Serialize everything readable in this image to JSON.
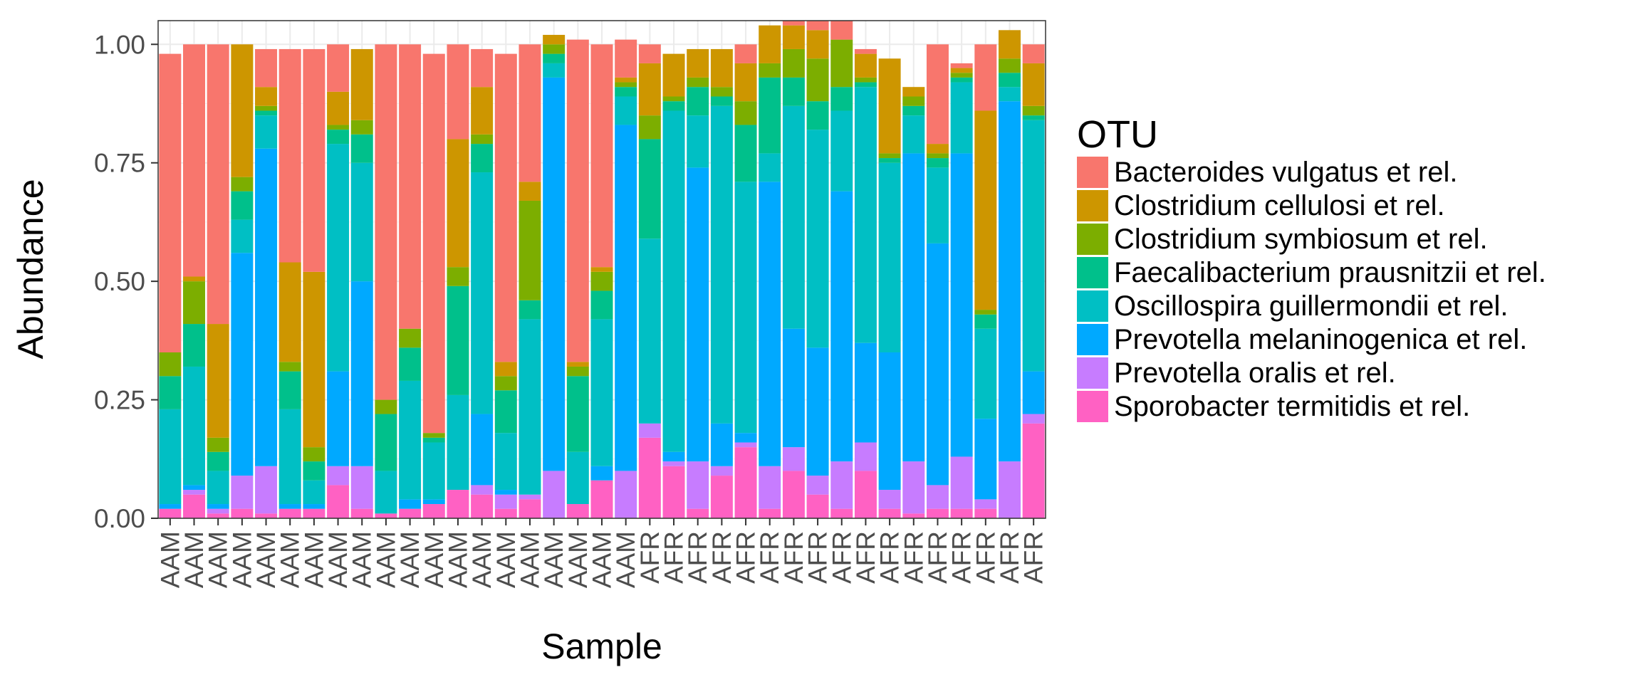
{
  "chart_data": {
    "type": "bar",
    "stacked": true,
    "title": "",
    "xlabel": "Sample",
    "ylabel": "Abundance",
    "ylim": [
      0,
      1.05
    ],
    "yticks": [
      "0.00",
      "0.25",
      "0.50",
      "0.75",
      "1.00"
    ],
    "ytick_values": [
      0,
      0.25,
      0.5,
      0.75,
      1.0
    ],
    "grid": true,
    "legend": {
      "title": "OTU",
      "position": "right"
    },
    "categories": [
      "AAM",
      "AAM",
      "AAM",
      "AAM",
      "AAM",
      "AAM",
      "AAM",
      "AAM",
      "AAM",
      "AAM",
      "AAM",
      "AAM",
      "AAM",
      "AAM",
      "AAM",
      "AAM",
      "AAM",
      "AAM",
      "AAM",
      "AAM",
      "AFR",
      "AFR",
      "AFR",
      "AFR",
      "AFR",
      "AFR",
      "AFR",
      "AFR",
      "AFR",
      "AFR",
      "AFR",
      "AFR",
      "AFR",
      "AFR",
      "AFR",
      "AFR",
      "AFR"
    ],
    "series": [
      {
        "name": "Sporobacter termitidis et rel.",
        "color": "#FF61C3",
        "values": [
          0.02,
          0.05,
          0.01,
          0.02,
          0.01,
          0.02,
          0.02,
          0.07,
          0.02,
          0.01,
          0.02,
          0.03,
          0.06,
          0.05,
          0.02,
          0.04,
          0.0,
          0.03,
          0.08,
          0.0,
          0.17,
          0.11,
          0.02,
          0.09,
          0.15,
          0.02,
          0.1,
          0.05,
          0.02,
          0.1,
          0.02,
          0.01,
          0.02,
          0.02,
          0.02,
          0.0,
          0.2
        ]
      },
      {
        "name": "Prevotella oralis et rel.",
        "color": "#C77CFF",
        "values": [
          0.0,
          0.01,
          0.01,
          0.07,
          0.1,
          0.0,
          0.0,
          0.04,
          0.09,
          0.0,
          0.0,
          0.0,
          0.0,
          0.02,
          0.03,
          0.01,
          0.1,
          0.0,
          0.0,
          0.1,
          0.03,
          0.01,
          0.1,
          0.02,
          0.01,
          0.09,
          0.05,
          0.04,
          0.1,
          0.06,
          0.04,
          0.11,
          0.05,
          0.11,
          0.02,
          0.12,
          0.02
        ]
      },
      {
        "name": "Prevotella melaninogenica et rel.",
        "color": "#00A9FF",
        "values": [
          0.01,
          0.01,
          0.01,
          0.47,
          0.67,
          0.01,
          0.01,
          0.2,
          0.39,
          0.0,
          0.02,
          0.01,
          0.0,
          0.15,
          0.01,
          0.0,
          0.83,
          0.0,
          0.03,
          0.73,
          0.0,
          0.02,
          0.62,
          0.09,
          0.02,
          0.6,
          0.25,
          0.27,
          0.57,
          0.21,
          0.29,
          0.65,
          0.51,
          0.64,
          0.17,
          0.76,
          0.09
        ]
      },
      {
        "name": "Oscillospira guillermondii et rel.",
        "color": "#00BFC4",
        "values": [
          0.2,
          0.25,
          0.07,
          0.07,
          0.07,
          0.2,
          0.05,
          0.48,
          0.25,
          0.09,
          0.25,
          0.12,
          0.2,
          0.51,
          0.12,
          0.37,
          0.03,
          0.11,
          0.31,
          0.06,
          0.39,
          0.72,
          0.11,
          0.67,
          0.53,
          0.06,
          0.47,
          0.46,
          0.17,
          0.54,
          0.4,
          0.08,
          0.16,
          0.15,
          0.19,
          0.03,
          0.53
        ]
      },
      {
        "name": "Faecalibacterium prausnitzii et rel.",
        "color": "#00C08B",
        "values": [
          0.07,
          0.09,
          0.04,
          0.06,
          0.01,
          0.08,
          0.04,
          0.03,
          0.06,
          0.12,
          0.07,
          0.01,
          0.23,
          0.06,
          0.09,
          0.04,
          0.02,
          0.16,
          0.06,
          0.02,
          0.21,
          0.02,
          0.06,
          0.02,
          0.12,
          0.16,
          0.06,
          0.06,
          0.05,
          0.01,
          0.01,
          0.02,
          0.02,
          0.01,
          0.03,
          0.03,
          0.01
        ]
      },
      {
        "name": "Clostridium symbiosum et rel.",
        "color": "#7CAE00",
        "values": [
          0.05,
          0.09,
          0.03,
          0.03,
          0.01,
          0.02,
          0.03,
          0.01,
          0.03,
          0.03,
          0.04,
          0.01,
          0.04,
          0.02,
          0.03,
          0.21,
          0.02,
          0.02,
          0.04,
          0.01,
          0.05,
          0.01,
          0.02,
          0.02,
          0.05,
          0.03,
          0.06,
          0.09,
          0.1,
          0.01,
          0.01,
          0.02,
          0.01,
          0.01,
          0.01,
          0.03,
          0.02
        ]
      },
      {
        "name": "Clostridium cellulosi et rel.",
        "color": "#CD9600",
        "values": [
          0.0,
          0.01,
          0.24,
          0.28,
          0.04,
          0.21,
          0.37,
          0.07,
          0.15,
          0.0,
          0.0,
          0.0,
          0.27,
          0.1,
          0.03,
          0.04,
          0.02,
          0.01,
          0.01,
          0.01,
          0.11,
          0.09,
          0.06,
          0.08,
          0.08,
          0.08,
          0.05,
          0.06,
          0.0,
          0.05,
          0.2,
          0.02,
          0.02,
          0.01,
          0.42,
          0.06,
          0.09
        ]
      },
      {
        "name": "Bacteroides vulgatus et rel.",
        "color": "#F8766D",
        "values": [
          0.63,
          0.49,
          0.59,
          0.0,
          0.08,
          0.45,
          0.47,
          0.1,
          0.0,
          0.75,
          0.6,
          0.8,
          0.2,
          0.08,
          0.65,
          0.29,
          0.0,
          0.68,
          0.47,
          0.08,
          0.04,
          0.0,
          0.0,
          0.0,
          0.04,
          0.0,
          0.01,
          0.02,
          0.04,
          0.01,
          0.0,
          0.0,
          0.21,
          0.01,
          0.14,
          0.0,
          0.04
        ]
      }
    ]
  }
}
